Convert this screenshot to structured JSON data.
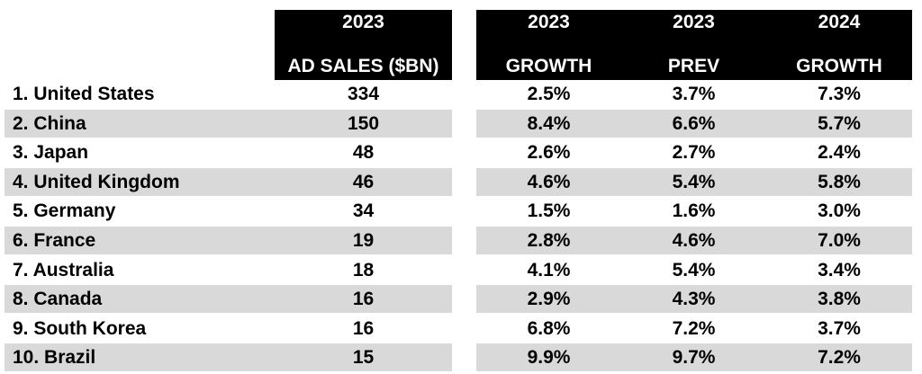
{
  "chart_data": {
    "type": "table",
    "headers": {
      "sales": [
        "2023",
        "AD SALES ($BN)"
      ],
      "growth_2023": [
        "2023",
        "GROWTH"
      ],
      "prev_2023": [
        "2023",
        "PREV"
      ],
      "growth_2024": [
        "2024",
        "GROWTH"
      ]
    },
    "rows": [
      {
        "country": "1. United States",
        "sales": "334",
        "growth_2023": "2.5%",
        "prev_2023": "3.7%",
        "growth_2024": "7.3%"
      },
      {
        "country": "2. China",
        "sales": "150",
        "growth_2023": "8.4%",
        "prev_2023": "6.6%",
        "growth_2024": "5.7%"
      },
      {
        "country": "3. Japan",
        "sales": "48",
        "growth_2023": "2.6%",
        "prev_2023": "2.7%",
        "growth_2024": "2.4%"
      },
      {
        "country": "4. United Kingdom",
        "sales": "46",
        "growth_2023": "4.6%",
        "prev_2023": "5.4%",
        "growth_2024": "5.8%"
      },
      {
        "country": "5. Germany",
        "sales": "34",
        "growth_2023": "1.5%",
        "prev_2023": "1.6%",
        "growth_2024": "3.0%"
      },
      {
        "country": "6. France",
        "sales": "19",
        "growth_2023": "2.8%",
        "prev_2023": "4.6%",
        "growth_2024": "7.0%"
      },
      {
        "country": "7. Australia",
        "sales": "18",
        "growth_2023": "4.1%",
        "prev_2023": "5.4%",
        "growth_2024": "3.4%"
      },
      {
        "country": "8. Canada",
        "sales": "16",
        "growth_2023": "2.9%",
        "prev_2023": "4.3%",
        "growth_2024": "3.8%"
      },
      {
        "country": "9. South Korea",
        "sales": "16",
        "growth_2023": "6.8%",
        "prev_2023": "7.2%",
        "growth_2024": "3.7%"
      },
      {
        "country": "10. Brazil",
        "sales": "15",
        "growth_2023": "9.9%",
        "prev_2023": "9.7%",
        "growth_2024": "7.2%"
      }
    ],
    "colors": {
      "header_bg": "#000000",
      "header_text": "#ffffff",
      "stripe": "#d9d9d9"
    }
  }
}
